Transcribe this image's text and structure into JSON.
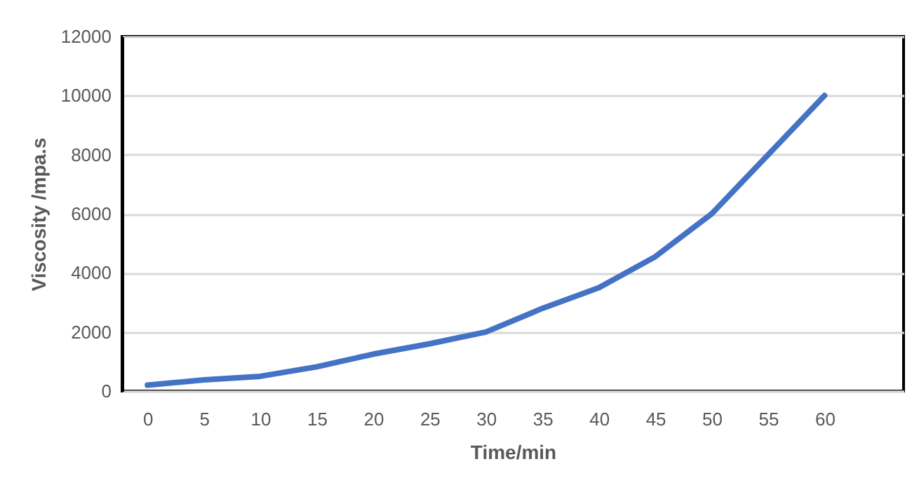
{
  "chart_data": {
    "type": "line",
    "xlabel": "Time/min",
    "ylabel": "Viscosity /mpa.s",
    "x": [
      0,
      5,
      10,
      15,
      20,
      25,
      30,
      35,
      40,
      45,
      50,
      55,
      60
    ],
    "series": [
      {
        "color": "#4472c4",
        "values": [
          200,
          380,
          500,
          820,
          1250,
          1600,
          2000,
          2800,
          3500,
          4550,
          6000,
          8000,
          10000
        ]
      }
    ],
    "xlim": [
      -2.25,
      67
    ],
    "xticks": [
      0,
      5,
      10,
      15,
      20,
      25,
      30,
      35,
      40,
      45,
      50,
      55,
      60
    ],
    "ylim": [
      0,
      12000
    ],
    "yticks": [
      0,
      2000,
      4000,
      6000,
      8000,
      10000,
      12000
    ],
    "grid": "y",
    "marker": "none",
    "line_style": "solid"
  }
}
